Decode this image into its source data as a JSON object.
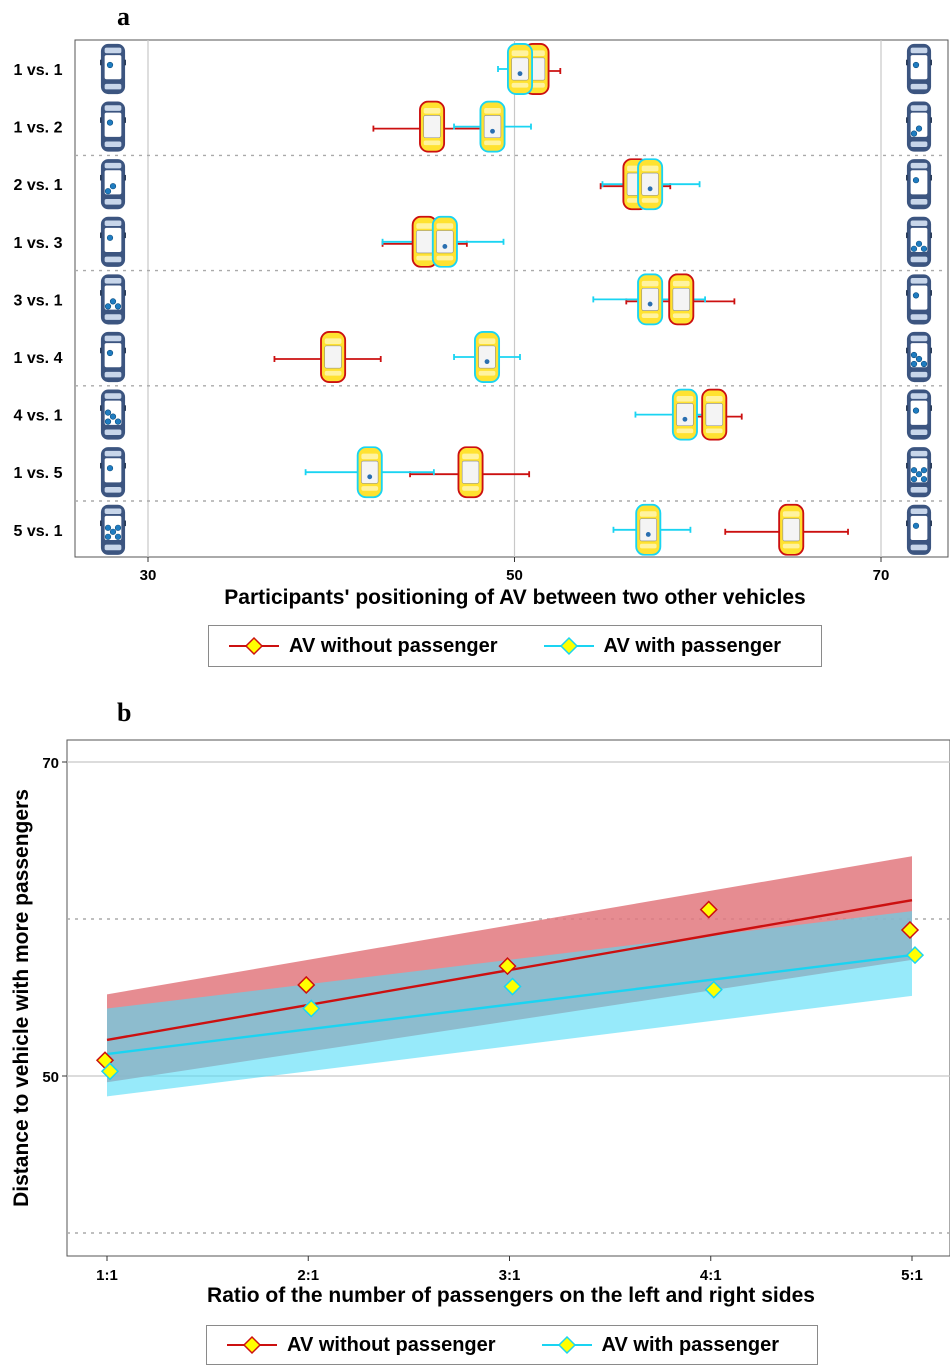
{
  "panel_labels": {
    "a": "a",
    "b": "b"
  },
  "colors": {
    "without_line": "#cc1010",
    "with_line": "#1ad4f2",
    "marker_fill": "#ffff00",
    "without_ribbon": "#e2787e",
    "with_ribbon": "#52dcf6",
    "overlap_ribbon": "#6f9fb0",
    "car_body": "#3c5580",
    "grid": "#c8c8c8"
  },
  "legend": {
    "without_label": "AV without passenger",
    "with_label": "AV with passenger"
  },
  "chart_data": [
    {
      "type": "scatter",
      "panel": "a",
      "xlabel": "Participants' positioning of AV between two other vehicles",
      "ylabel": "",
      "xlim": [
        24,
        75
      ],
      "x_ticks": [
        30,
        50,
        70
      ],
      "x_tick_labels": [
        "30",
        "50",
        "70"
      ],
      "categories": [
        "1 vs. 1",
        "1 vs. 2",
        "2 vs. 1",
        "1 vs. 3",
        "3 vs. 1",
        "1 vs. 4",
        "4 vs. 1",
        "1 vs. 5",
        "5 vs. 1"
      ],
      "vehicle_passengers_left": [
        1,
        1,
        2,
        1,
        3,
        1,
        4,
        1,
        5
      ],
      "vehicle_passengers_right": [
        1,
        2,
        1,
        3,
        1,
        4,
        1,
        5,
        1
      ],
      "grid_vertical": true,
      "series": [
        {
          "name": "AV without passenger",
          "values": [
            51.2,
            45.5,
            56.6,
            45.1,
            59.1,
            40.1,
            60.9,
            47.6,
            65.1
          ],
          "ci_low": [
            49.8,
            42.3,
            54.7,
            42.8,
            56.1,
            36.9,
            59.6,
            44.3,
            61.5
          ],
          "ci_high": [
            52.5,
            48.5,
            58.5,
            47.4,
            62.0,
            42.7,
            62.4,
            50.8,
            68.2
          ]
        },
        {
          "name": "AV with passenger",
          "values": [
            50.3,
            48.8,
            57.4,
            46.2,
            57.4,
            48.5,
            59.3,
            42.1,
            57.3
          ],
          "ci_low": [
            49.1,
            46.7,
            54.8,
            42.8,
            54.3,
            46.7,
            56.6,
            38.6,
            55.4
          ],
          "ci_high": [
            51.2,
            50.9,
            60.1,
            49.4,
            60.4,
            50.3,
            61.2,
            45.6,
            59.6
          ]
        }
      ]
    },
    {
      "type": "line",
      "panel": "b",
      "xlabel": "Ratio of the number of passengers on the left and right sides",
      "ylabel": "Distance to vehicle with more passengers",
      "categories": [
        "1:1",
        "2:1",
        "3:1",
        "4:1",
        "5:1"
      ],
      "ylim": [
        40,
        72
      ],
      "y_ticks": [
        50,
        70
      ],
      "y_tick_labels": [
        "50",
        "70"
      ],
      "y_minor_dotted": [
        40,
        60
      ],
      "series": [
        {
          "name": "AV without passenger",
          "points": [
            51.0,
            55.8,
            57.0,
            60.6,
            59.3
          ],
          "fit": [
            52.3,
            61.2
          ],
          "ribbon_low": [
            49.6,
            57.4
          ],
          "ribbon_high": [
            55.2,
            64.0
          ]
        },
        {
          "name": "AV with passenger",
          "points": [
            50.3,
            54.3,
            55.7,
            55.5,
            57.7
          ],
          "fit": [
            51.4,
            57.7
          ],
          "ribbon_low": [
            48.7,
            55.1
          ],
          "ribbon_high": [
            54.3,
            60.5
          ]
        }
      ]
    }
  ]
}
